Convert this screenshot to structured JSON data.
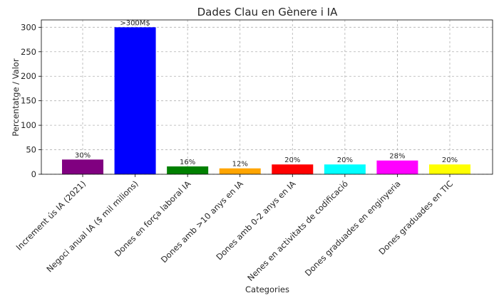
{
  "chart_data": {
    "type": "bar",
    "title": "Dades Clau en Gènere i IA",
    "xlabel": "Categories",
    "ylabel": "Percentatge / Valor",
    "ylim": [
      0,
      315
    ],
    "yticks": [
      0,
      50,
      100,
      150,
      200,
      250,
      300
    ],
    "grid": true,
    "categories": [
      "Increment ús IA (2021)",
      "Negoci anual IA ($ mil milions)",
      "Dones en força laboral IA",
      "Dones amb >10 anys en IA",
      "Dones amb 0-2 anys en IA",
      "Nenes en activitats de codificació",
      "Dones graduades en enginyeria",
      "Dones graduades en TIC"
    ],
    "values": [
      30,
      300,
      16,
      12,
      20,
      20,
      28,
      20
    ],
    "data_labels": [
      "30%",
      ">300M$",
      "16%",
      "12%",
      "20%",
      "20%",
      "28%",
      "20%"
    ],
    "colors": [
      "#800080",
      "#0000ff",
      "#008000",
      "#ffa500",
      "#ff0000",
      "#00ffff",
      "#ff00ff",
      "#ffff00"
    ]
  }
}
